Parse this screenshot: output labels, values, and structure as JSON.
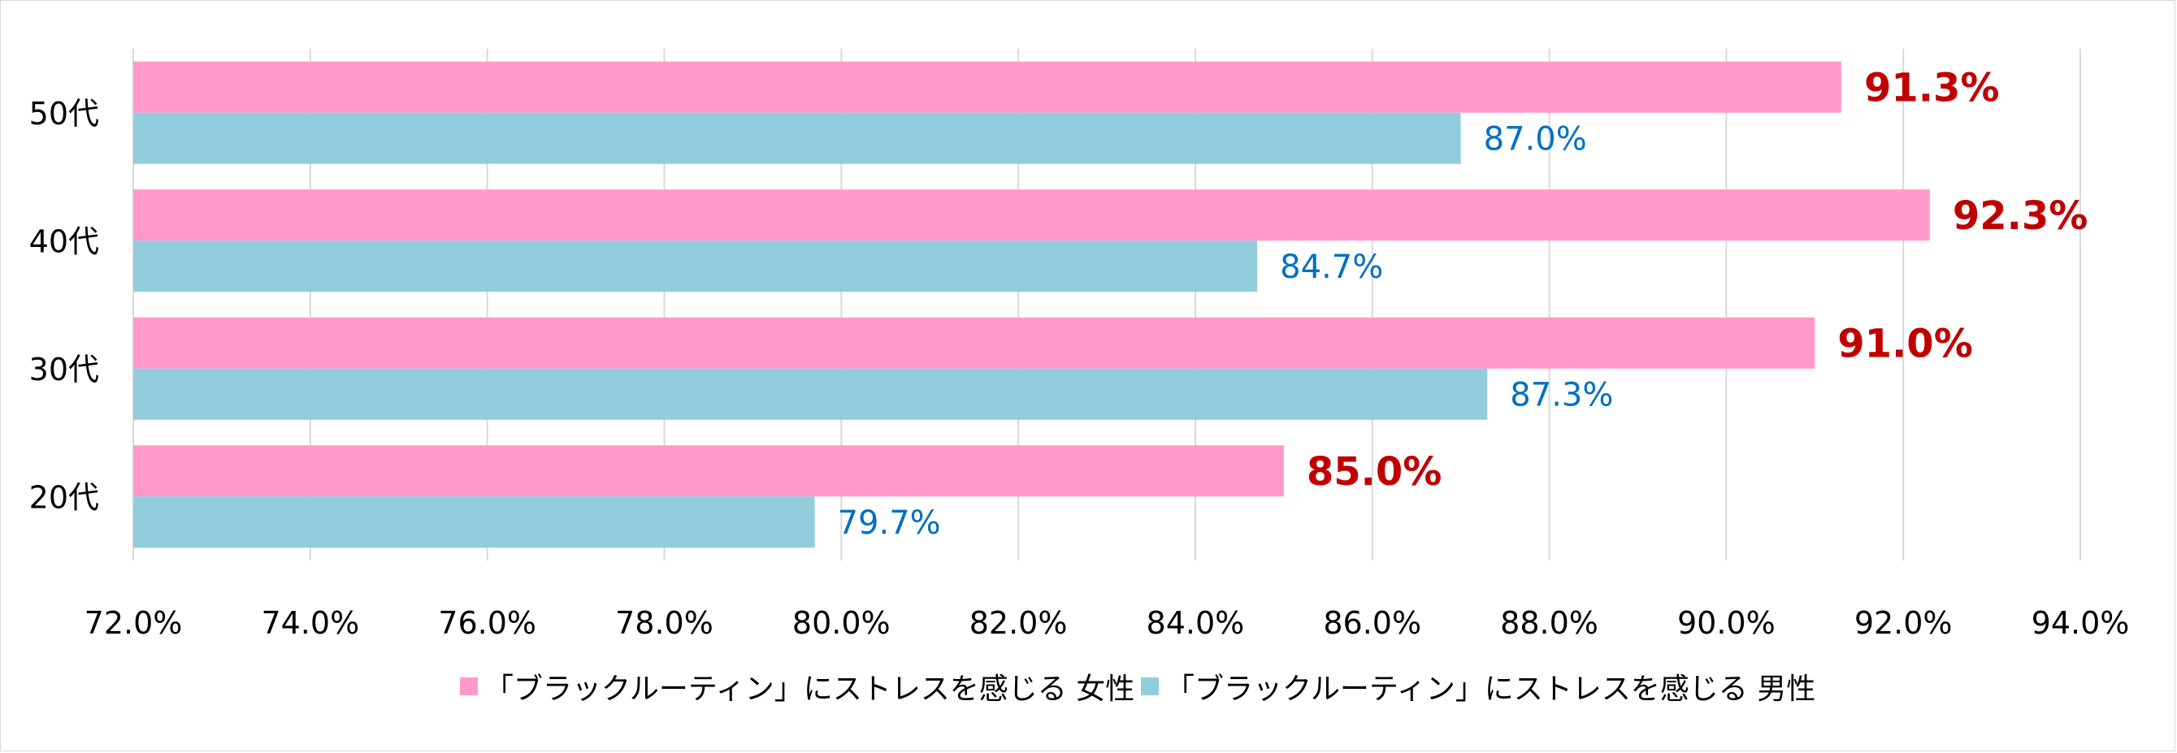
{
  "chart_data": {
    "type": "bar",
    "orientation": "horizontal",
    "categories": [
      "50代",
      "40代",
      "30代",
      "20代"
    ],
    "series": [
      {
        "name": "「ブラックルーティン」にストレスを感じる 女性",
        "color": "#ff99cc",
        "label_color": "#c00000",
        "values": [
          91.3,
          92.3,
          91.0,
          85.0
        ],
        "labels": [
          "91.3%",
          "92.3%",
          "91.0%",
          "85.0%"
        ]
      },
      {
        "name": "「ブラックルーティン」にストレスを感じる 男性",
        "color": "#92cddc",
        "label_color": "#0070c0",
        "values": [
          87.0,
          84.7,
          87.3,
          79.7
        ],
        "labels": [
          "87.0%",
          "84.7%",
          "87.3%",
          "79.7%"
        ]
      }
    ],
    "xlim": [
      72.0,
      94.0
    ],
    "xticks": [
      "72.0%",
      "74.0%",
      "76.0%",
      "78.0%",
      "80.0%",
      "82.0%",
      "84.0%",
      "86.0%",
      "88.0%",
      "90.0%",
      "92.0%",
      "94.0%"
    ],
    "grid": true,
    "legend": "bottom"
  }
}
